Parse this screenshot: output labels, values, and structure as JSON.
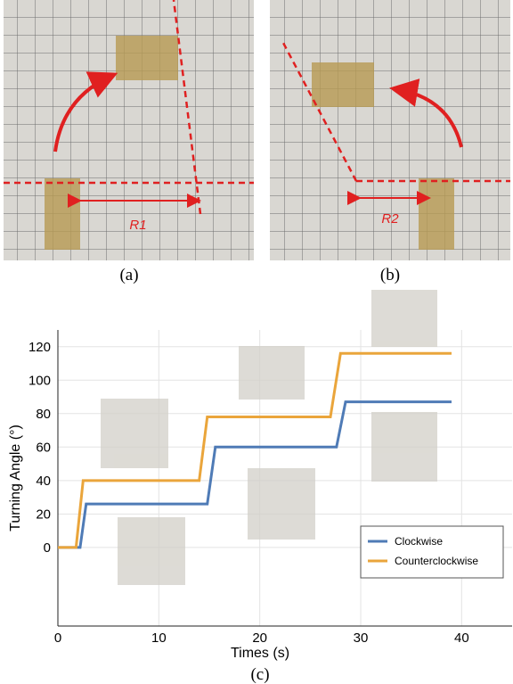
{
  "figure": {
    "panels": [
      {
        "label": "(a)",
        "annotation": "R1"
      },
      {
        "label": "(b)",
        "annotation": "R2"
      }
    ],
    "chart_label": "(c)"
  },
  "chart_data": {
    "type": "line",
    "x_label": "Times (s)",
    "y_label": "Turning Angle (°)",
    "xlim": [
      0,
      45
    ],
    "ylim": [
      -47,
      130
    ],
    "xticks": [
      0,
      10,
      20,
      30,
      40
    ],
    "yticks": [
      0,
      20,
      40,
      60,
      80,
      100,
      120
    ],
    "grid": true,
    "legend": "lower right",
    "series": [
      {
        "name": "Clockwise",
        "color": "#4f7bb6",
        "x": [
          0,
          2.2,
          2.8,
          14.8,
          15.6,
          27.6,
          28.5,
          39
        ],
        "values": [
          0,
          0,
          26,
          26,
          60,
          60,
          87,
          87
        ]
      },
      {
        "name": "Counterclockwise",
        "color": "#eaa53b",
        "x": [
          0,
          1.8,
          2.5,
          14,
          14.8,
          27,
          28,
          39
        ],
        "values": [
          0,
          0,
          40,
          40,
          78,
          78,
          116,
          116
        ]
      }
    ]
  }
}
